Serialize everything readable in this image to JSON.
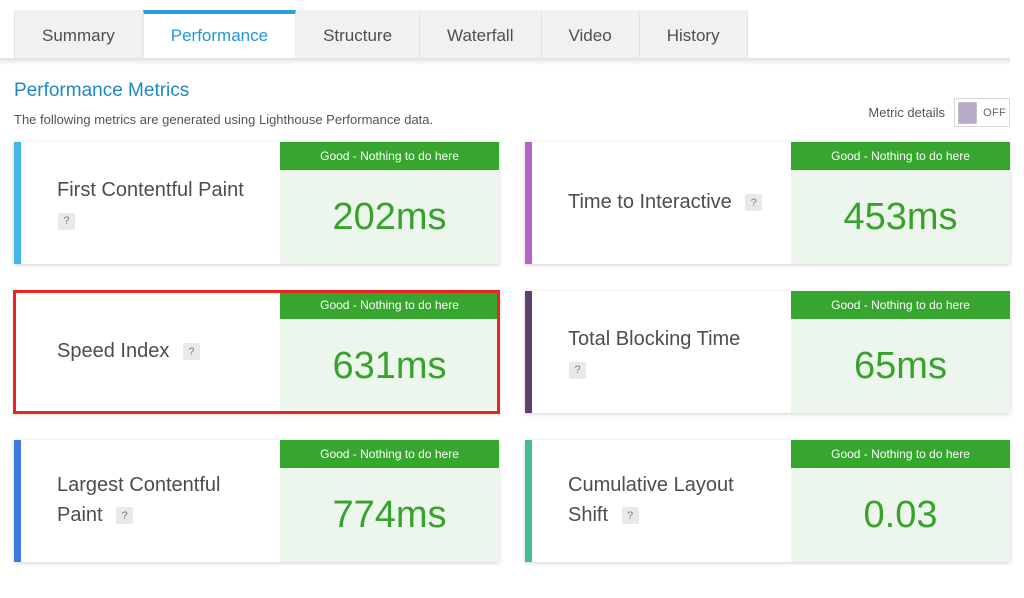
{
  "tabs": [
    {
      "label": "Summary",
      "active": false
    },
    {
      "label": "Performance",
      "active": true
    },
    {
      "label": "Structure",
      "active": false
    },
    {
      "label": "Waterfall",
      "active": false
    },
    {
      "label": "Video",
      "active": false
    },
    {
      "label": "History",
      "active": false
    }
  ],
  "header": {
    "title": "Performance Metrics",
    "subtitle": "The following metrics are generated using Lighthouse Performance data.",
    "toggle_label": "Metric details",
    "toggle_state": "OFF"
  },
  "help_icon_label": "?",
  "cards": [
    {
      "id": "first-contentful-paint",
      "title": "First Contentful Paint",
      "status": "Good - Nothing to do here",
      "value": "202ms",
      "accent": "#41b6e8",
      "highlighted": false
    },
    {
      "id": "time-to-interactive",
      "title": "Time to Interactive",
      "status": "Good - Nothing to do here",
      "value": "453ms",
      "accent": "#b565c8",
      "highlighted": false
    },
    {
      "id": "speed-index",
      "title": "Speed Index",
      "status": "Good - Nothing to do here",
      "value": "631ms",
      "accent": null,
      "highlighted": true
    },
    {
      "id": "total-blocking-time",
      "title": "Total Blocking Time",
      "status": "Good - Nothing to do here",
      "value": "65ms",
      "accent": "#5f4070",
      "highlighted": false
    },
    {
      "id": "largest-contentful-paint",
      "title": "Largest Contentful Paint",
      "status": "Good - Nothing to do here",
      "value": "774ms",
      "accent": "#4079e2",
      "highlighted": false
    },
    {
      "id": "cumulative-layout-shift",
      "title": "Cumulative Layout Shift",
      "status": "Good - Nothing to do here",
      "value": "0.03",
      "accent": "#43bb9b",
      "highlighted": false
    }
  ],
  "colors": {
    "active_tab_blue": "#2d9ddb",
    "active_tab_text": "#2196dd",
    "heading_blue": "#1e88c8",
    "status_green": "#36a62f",
    "value_green": "#38a32c",
    "value_bg_green": "#edf6ed",
    "highlight_red": "#e8261f",
    "toggle_knob_purple": "#b7abc8"
  }
}
